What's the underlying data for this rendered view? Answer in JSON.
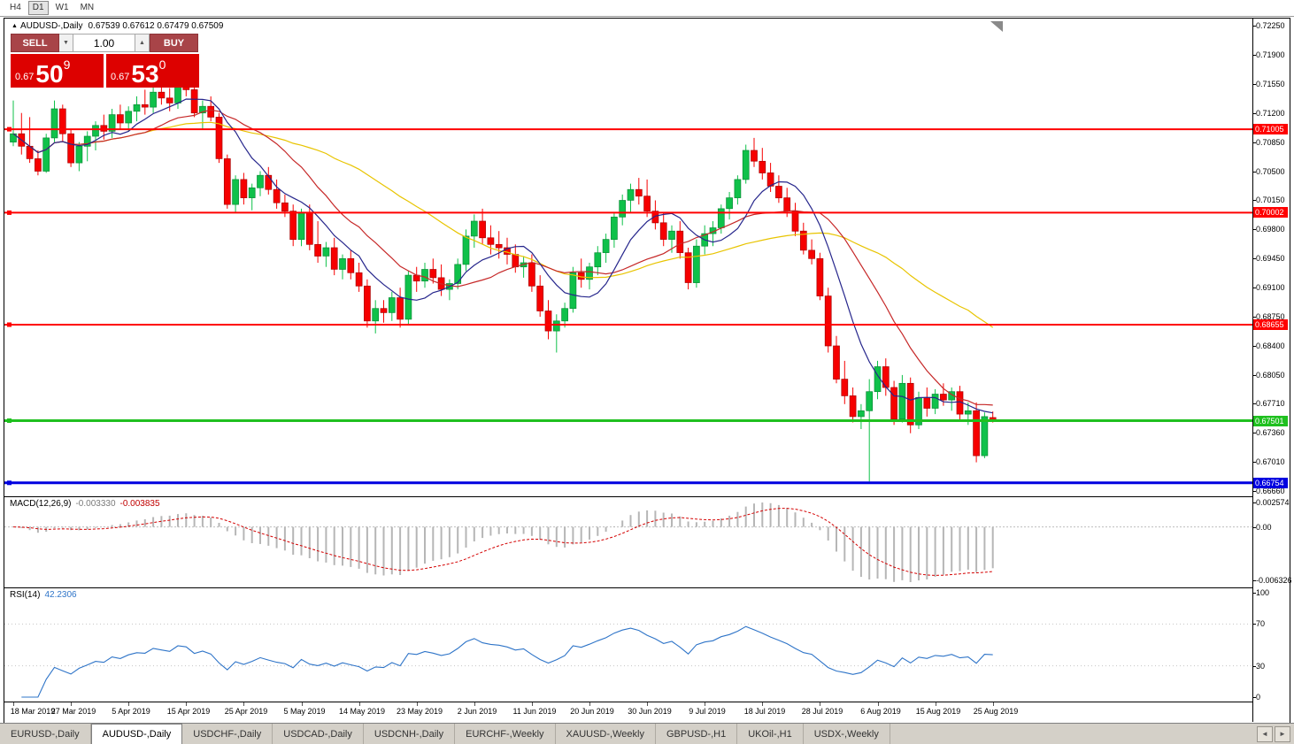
{
  "top_toolbar": {
    "timeframes": [
      "H4",
      "D1",
      "W1",
      "MN"
    ],
    "active": "D1"
  },
  "chart": {
    "title_marker": "▲",
    "title": "AUDUSD-,Daily",
    "ohlc": "0.67539 0.67612 0.67479 0.67509"
  },
  "trade_panel": {
    "sell_label": "SELL",
    "buy_label": "BUY",
    "volume": "1.00",
    "spin_down": "▼",
    "spin_up": "▲",
    "bid": {
      "prefix": "0.67",
      "big": "50",
      "sup": "9"
    },
    "ask": {
      "prefix": "0.67",
      "big": "53",
      "sup": "0"
    }
  },
  "chart_data": {
    "type": "candlestick",
    "symbol": "AUDUSD",
    "period": "Daily",
    "up_color": "#0fc14a",
    "down_color": "#f60000",
    "up_border": "#0a8c36",
    "down_border": "#aa0000",
    "price_axis": {
      "top": 0.72335,
      "bottom": 0.66592,
      "labels": [
        "0.72250",
        "0.71900",
        "0.71550",
        "0.71200",
        "0.70850",
        "0.70500",
        "0.70150",
        "0.69800",
        "0.69450",
        "0.69100",
        "0.68750",
        "0.68400",
        "0.68050",
        "0.67710",
        "0.67360",
        "0.67010",
        "0.66660"
      ]
    },
    "x_labels": [
      "18 Mar 2019",
      "27 Mar 2019",
      "5 Apr 2019",
      "15 Apr 2019",
      "25 Apr 2019",
      "5 May 2019",
      "14 May 2019",
      "23 May 2019",
      "2 Jun 2019",
      "11 Jun 2019",
      "20 Jun 2019",
      "30 Jun 2019",
      "9 Jul 2019",
      "18 Jul 2019",
      "28 Jul 2019",
      "6 Aug 2019",
      "15 Aug 2019",
      "25 Aug 2019"
    ],
    "x_label_indices": [
      0,
      7,
      14,
      21,
      28,
      35,
      42,
      49,
      56,
      63,
      70,
      77,
      84,
      91,
      98,
      105,
      112,
      119
    ],
    "ma_lines": [
      {
        "name": "ma-slow",
        "period": 34,
        "color": "#e8c400"
      },
      {
        "name": "ma-mid",
        "period": 16,
        "color": "#c62828"
      },
      {
        "name": "ma-fast",
        "period": 8,
        "color": "#26268c"
      }
    ],
    "levels": [
      {
        "price": 0.71005,
        "label": "0.71005",
        "color": "#ff0000",
        "width": 2
      },
      {
        "price": 0.70002,
        "label": "0.70002",
        "color": "#ff0000",
        "width": 2
      },
      {
        "price": 0.68655,
        "label": "0.68655",
        "color": "#ff0000",
        "width": 2
      },
      {
        "price": 0.67501,
        "label": "0.67501",
        "color": "#1fc01f",
        "width": 3
      },
      {
        "price": 0.66754,
        "label": "0.66754",
        "color": "#0000e0",
        "width": 3
      }
    ],
    "candles": [
      [
        0.7085,
        0.7135,
        0.708,
        0.7095
      ],
      [
        0.7095,
        0.712,
        0.707,
        0.708
      ],
      [
        0.708,
        0.7115,
        0.706,
        0.7065
      ],
      [
        0.7065,
        0.7075,
        0.7045,
        0.705
      ],
      [
        0.705,
        0.7095,
        0.7048,
        0.709
      ],
      [
        0.709,
        0.7135,
        0.7085,
        0.7125
      ],
      [
        0.7125,
        0.713,
        0.7085,
        0.7095
      ],
      [
        0.7095,
        0.71,
        0.7055,
        0.706
      ],
      [
        0.706,
        0.7085,
        0.705,
        0.708
      ],
      [
        0.708,
        0.7098,
        0.7062,
        0.7092
      ],
      [
        0.7092,
        0.711,
        0.7075,
        0.7105
      ],
      [
        0.7105,
        0.7118,
        0.7088,
        0.7098
      ],
      [
        0.7098,
        0.7125,
        0.709,
        0.7118
      ],
      [
        0.7118,
        0.713,
        0.71,
        0.7108
      ],
      [
        0.7108,
        0.7128,
        0.7098,
        0.7122
      ],
      [
        0.7122,
        0.714,
        0.711,
        0.713
      ],
      [
        0.713,
        0.7148,
        0.7118,
        0.7127
      ],
      [
        0.7127,
        0.7155,
        0.712,
        0.7145
      ],
      [
        0.7145,
        0.716,
        0.713,
        0.7138
      ],
      [
        0.7138,
        0.715,
        0.7122,
        0.7132
      ],
      [
        0.7132,
        0.716,
        0.7125,
        0.7152
      ],
      [
        0.7152,
        0.7168,
        0.714,
        0.7148
      ],
      [
        0.7148,
        0.7152,
        0.7115,
        0.712
      ],
      [
        0.712,
        0.7135,
        0.71,
        0.7128
      ],
      [
        0.7128,
        0.714,
        0.711,
        0.7115
      ],
      [
        0.7115,
        0.712,
        0.706,
        0.7065
      ],
      [
        0.7065,
        0.707,
        0.7005,
        0.701
      ],
      [
        0.701,
        0.7045,
        0.7,
        0.704
      ],
      [
        0.704,
        0.7048,
        0.701,
        0.7018
      ],
      [
        0.7018,
        0.7035,
        0.7003,
        0.703
      ],
      [
        0.703,
        0.705,
        0.702,
        0.7045
      ],
      [
        0.7045,
        0.7055,
        0.7022,
        0.7028
      ],
      [
        0.7028,
        0.704,
        0.7005,
        0.7012
      ],
      [
        0.7012,
        0.7022,
        0.6995,
        0.7002
      ],
      [
        0.7002,
        0.701,
        0.696,
        0.6968
      ],
      [
        0.6968,
        0.7005,
        0.696,
        0.7
      ],
      [
        0.7,
        0.701,
        0.6955,
        0.6962
      ],
      [
        0.6962,
        0.699,
        0.694,
        0.6948
      ],
      [
        0.6948,
        0.6965,
        0.6935,
        0.6958
      ],
      [
        0.6958,
        0.697,
        0.6925,
        0.6932
      ],
      [
        0.6932,
        0.695,
        0.692,
        0.6945
      ],
      [
        0.6945,
        0.6955,
        0.692,
        0.6928
      ],
      [
        0.6928,
        0.694,
        0.6905,
        0.6912
      ],
      [
        0.6912,
        0.692,
        0.6862,
        0.687
      ],
      [
        0.687,
        0.6895,
        0.6855,
        0.6885
      ],
      [
        0.6885,
        0.6895,
        0.6868,
        0.688
      ],
      [
        0.688,
        0.6905,
        0.687,
        0.6898
      ],
      [
        0.6898,
        0.691,
        0.6862,
        0.6872
      ],
      [
        0.6872,
        0.693,
        0.6866,
        0.6925
      ],
      [
        0.6925,
        0.6935,
        0.6905,
        0.6918
      ],
      [
        0.6918,
        0.694,
        0.691,
        0.6932
      ],
      [
        0.6932,
        0.6945,
        0.6915,
        0.6922
      ],
      [
        0.6922,
        0.6938,
        0.69,
        0.6908
      ],
      [
        0.6908,
        0.692,
        0.6895,
        0.6915
      ],
      [
        0.6915,
        0.6945,
        0.6908,
        0.6938
      ],
      [
        0.6938,
        0.698,
        0.693,
        0.6972
      ],
      [
        0.6972,
        0.6998,
        0.6958,
        0.699
      ],
      [
        0.699,
        0.7005,
        0.6962,
        0.697
      ],
      [
        0.697,
        0.6985,
        0.695,
        0.6962
      ],
      [
        0.6962,
        0.6978,
        0.6945,
        0.6958
      ],
      [
        0.6958,
        0.697,
        0.6938,
        0.695
      ],
      [
        0.695,
        0.6962,
        0.6928,
        0.6935
      ],
      [
        0.6935,
        0.6948,
        0.6922,
        0.694
      ],
      [
        0.694,
        0.695,
        0.6905,
        0.6912
      ],
      [
        0.6912,
        0.6925,
        0.6875,
        0.6882
      ],
      [
        0.6882,
        0.6895,
        0.6848,
        0.6858
      ],
      [
        0.6858,
        0.6878,
        0.6832,
        0.687
      ],
      [
        0.687,
        0.6892,
        0.6862,
        0.6885
      ],
      [
        0.6885,
        0.6935,
        0.688,
        0.6928
      ],
      [
        0.6928,
        0.6945,
        0.691,
        0.692
      ],
      [
        0.692,
        0.694,
        0.6908,
        0.6935
      ],
      [
        0.6935,
        0.696,
        0.6925,
        0.6952
      ],
      [
        0.6952,
        0.6975,
        0.694,
        0.6968
      ],
      [
        0.6968,
        0.7,
        0.6958,
        0.6995
      ],
      [
        0.6995,
        0.7022,
        0.6985,
        0.7015
      ],
      [
        0.7015,
        0.7035,
        0.7,
        0.7028
      ],
      [
        0.7028,
        0.7042,
        0.701,
        0.702
      ],
      [
        0.702,
        0.704,
        0.6995,
        0.7002
      ],
      [
        0.7002,
        0.7015,
        0.698,
        0.6988
      ],
      [
        0.6988,
        0.7,
        0.696,
        0.6968
      ],
      [
        0.6968,
        0.6985,
        0.6952,
        0.6978
      ],
      [
        0.6978,
        0.699,
        0.6945,
        0.6952
      ],
      [
        0.6952,
        0.6958,
        0.6908,
        0.6916
      ],
      [
        0.6916,
        0.6968,
        0.691,
        0.696
      ],
      [
        0.696,
        0.6985,
        0.695,
        0.6975
      ],
      [
        0.6975,
        0.699,
        0.696,
        0.6982
      ],
      [
        0.6982,
        0.701,
        0.6975,
        0.7005
      ],
      [
        0.7005,
        0.7025,
        0.6992,
        0.7018
      ],
      [
        0.7018,
        0.7045,
        0.701,
        0.704
      ],
      [
        0.704,
        0.7082,
        0.7035,
        0.7075
      ],
      [
        0.7075,
        0.709,
        0.7055,
        0.7062
      ],
      [
        0.7062,
        0.7078,
        0.704,
        0.7048
      ],
      [
        0.7048,
        0.706,
        0.7025,
        0.7032
      ],
      [
        0.7032,
        0.7045,
        0.7012,
        0.7018
      ],
      [
        0.7018,
        0.703,
        0.6995,
        0.7002
      ],
      [
        0.7002,
        0.7012,
        0.6972,
        0.6978
      ],
      [
        0.6978,
        0.6988,
        0.695,
        0.6955
      ],
      [
        0.6955,
        0.6968,
        0.6938,
        0.6945
      ],
      [
        0.6945,
        0.6952,
        0.6895,
        0.69
      ],
      [
        0.69,
        0.691,
        0.6832,
        0.684
      ],
      [
        0.684,
        0.6852,
        0.6795,
        0.68
      ],
      [
        0.68,
        0.6822,
        0.677,
        0.678
      ],
      [
        0.678,
        0.679,
        0.6748,
        0.6755
      ],
      [
        0.6755,
        0.677,
        0.674,
        0.6762
      ],
      [
        0.6762,
        0.68,
        0.6677,
        0.6785
      ],
      [
        0.6785,
        0.6822,
        0.6776,
        0.6815
      ],
      [
        0.6815,
        0.6825,
        0.678,
        0.679
      ],
      [
        0.679,
        0.6798,
        0.6745,
        0.6752
      ],
      [
        0.6752,
        0.6805,
        0.6748,
        0.6795
      ],
      [
        0.6795,
        0.6802,
        0.6735,
        0.6745
      ],
      [
        0.6745,
        0.6785,
        0.674,
        0.6778
      ],
      [
        0.6778,
        0.679,
        0.6755,
        0.6765
      ],
      [
        0.6765,
        0.6788,
        0.6758,
        0.6782
      ],
      [
        0.6782,
        0.6795,
        0.6768,
        0.6775
      ],
      [
        0.6775,
        0.679,
        0.6762,
        0.6785
      ],
      [
        0.6785,
        0.6792,
        0.675,
        0.6758
      ],
      [
        0.6758,
        0.6772,
        0.6745,
        0.6762
      ],
      [
        0.6762,
        0.6772,
        0.67,
        0.6708
      ],
      [
        0.6708,
        0.676,
        0.6705,
        0.6755
      ],
      [
        0.67539,
        0.67612,
        0.67479,
        0.67509
      ]
    ]
  },
  "macd_panel": {
    "label_name": "MACD(12,26,9)",
    "value_main": "-0.003330",
    "value_signal": "-0.003835",
    "scale": {
      "top": "0.002574",
      "zero": "0.00",
      "bottom": "-0.006326"
    },
    "bar_color": "#b6b6b6",
    "signal_color": "#d40000"
  },
  "rsi_panel": {
    "label_name": "RSI(14)",
    "label_value": "42.2306",
    "scale_labels": [
      "100",
      "70",
      "30",
      "0"
    ],
    "levels": [
      70,
      30
    ],
    "line_color": "#2e74c8"
  },
  "tabs": {
    "items": [
      "EURUSD-,Daily",
      "AUDUSD-,Daily",
      "USDCHF-,Daily",
      "USDCAD-,Daily",
      "USDCNH-,Daily",
      "EURCHF-,Weekly",
      "XAUUSD-,Weekly",
      "GBPUSD-,H1",
      "UKOil-,H1",
      "USDX-,Weekly"
    ],
    "active": "AUDUSD-,Daily",
    "scroll_left": "◄",
    "scroll_right": "►"
  }
}
